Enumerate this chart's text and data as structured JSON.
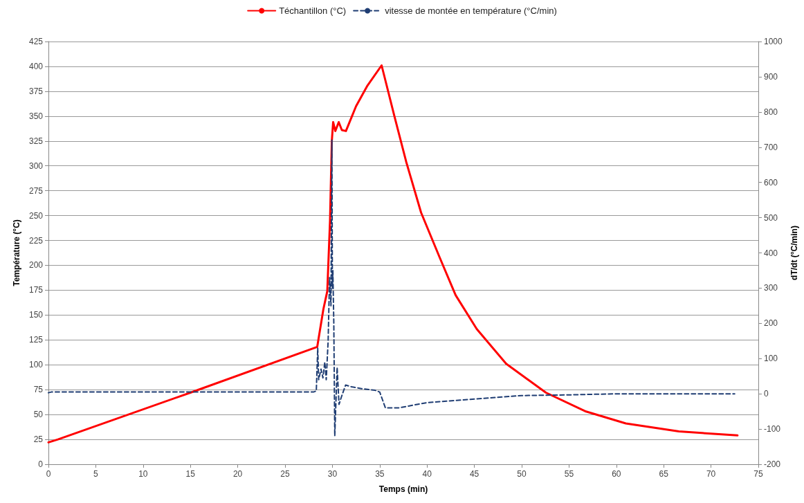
{
  "chart_data": {
    "type": "line",
    "xlabel": "Temps (min)",
    "ylabel": "Température (°C)",
    "y2label": "dT/dt (°C/min)",
    "xlim": [
      0,
      75
    ],
    "xticks": [
      0,
      5,
      10,
      15,
      20,
      25,
      30,
      35,
      40,
      45,
      50,
      55,
      60,
      65,
      70,
      75
    ],
    "ylim": [
      0,
      425
    ],
    "yticks": [
      0,
      25,
      50,
      75,
      100,
      125,
      150,
      175,
      200,
      225,
      250,
      275,
      300,
      325,
      350,
      375,
      400,
      425
    ],
    "y2lim": [
      -200,
      1000
    ],
    "y2ticks": [
      -200,
      -100,
      0,
      100,
      200,
      300,
      400,
      500,
      600,
      700,
      800,
      900,
      1000
    ],
    "grid": "y",
    "legend": "top",
    "marker": "none",
    "series": [
      {
        "name": "Téchantillon (°C)",
        "color": "#ff0000",
        "line_style": "solid",
        "x": [
          0,
          1,
          15,
          28.4,
          28.5,
          29.05,
          29.46,
          29.75,
          29.94,
          30.08,
          30.31,
          30.67,
          31.0,
          31.43,
          32.5,
          33.66,
          35.2,
          36.55,
          37.8,
          39.37,
          41.33,
          43.02,
          45.25,
          48.36,
          52.56,
          56.8,
          61.0,
          66.6,
          72.8
        ],
        "values": [
          22,
          25,
          72,
          118,
          124,
          156,
          174,
          245,
          325,
          344,
          335,
          344,
          336,
          335,
          360,
          380,
          401,
          350,
          304,
          253,
          208,
          170,
          136,
          101,
          72,
          53,
          41,
          33,
          29
        ]
      },
      {
        "name": "vitesse de montée en température (°C/min)",
        "color": "#1f3d73",
        "line_style": "dashed",
        "axis": "y2",
        "x": [
          0,
          0.3,
          28.0,
          28.3,
          28.45,
          28.55,
          28.8,
          29.0,
          29.2,
          29.35,
          29.55,
          29.7,
          29.85,
          29.95,
          30.0,
          30.05,
          30.15,
          30.25,
          30.5,
          30.7,
          31.0,
          31.4,
          32.0,
          33.0,
          34.5,
          35.0,
          35.6,
          36.0,
          37.0,
          40.0,
          45.0,
          50.0,
          55.0,
          60.0,
          65.0,
          72.5
        ],
        "values": [
          3,
          5,
          5,
          8,
          130,
          40,
          70,
          45,
          90,
          40,
          150,
          330,
          250,
          720,
          300,
          350,
          200,
          -120,
          75,
          -30,
          -5,
          25,
          20,
          15,
          10,
          5,
          -40,
          -40,
          -40,
          -25,
          -15,
          -5,
          -3,
          0,
          0,
          0
        ]
      }
    ]
  }
}
